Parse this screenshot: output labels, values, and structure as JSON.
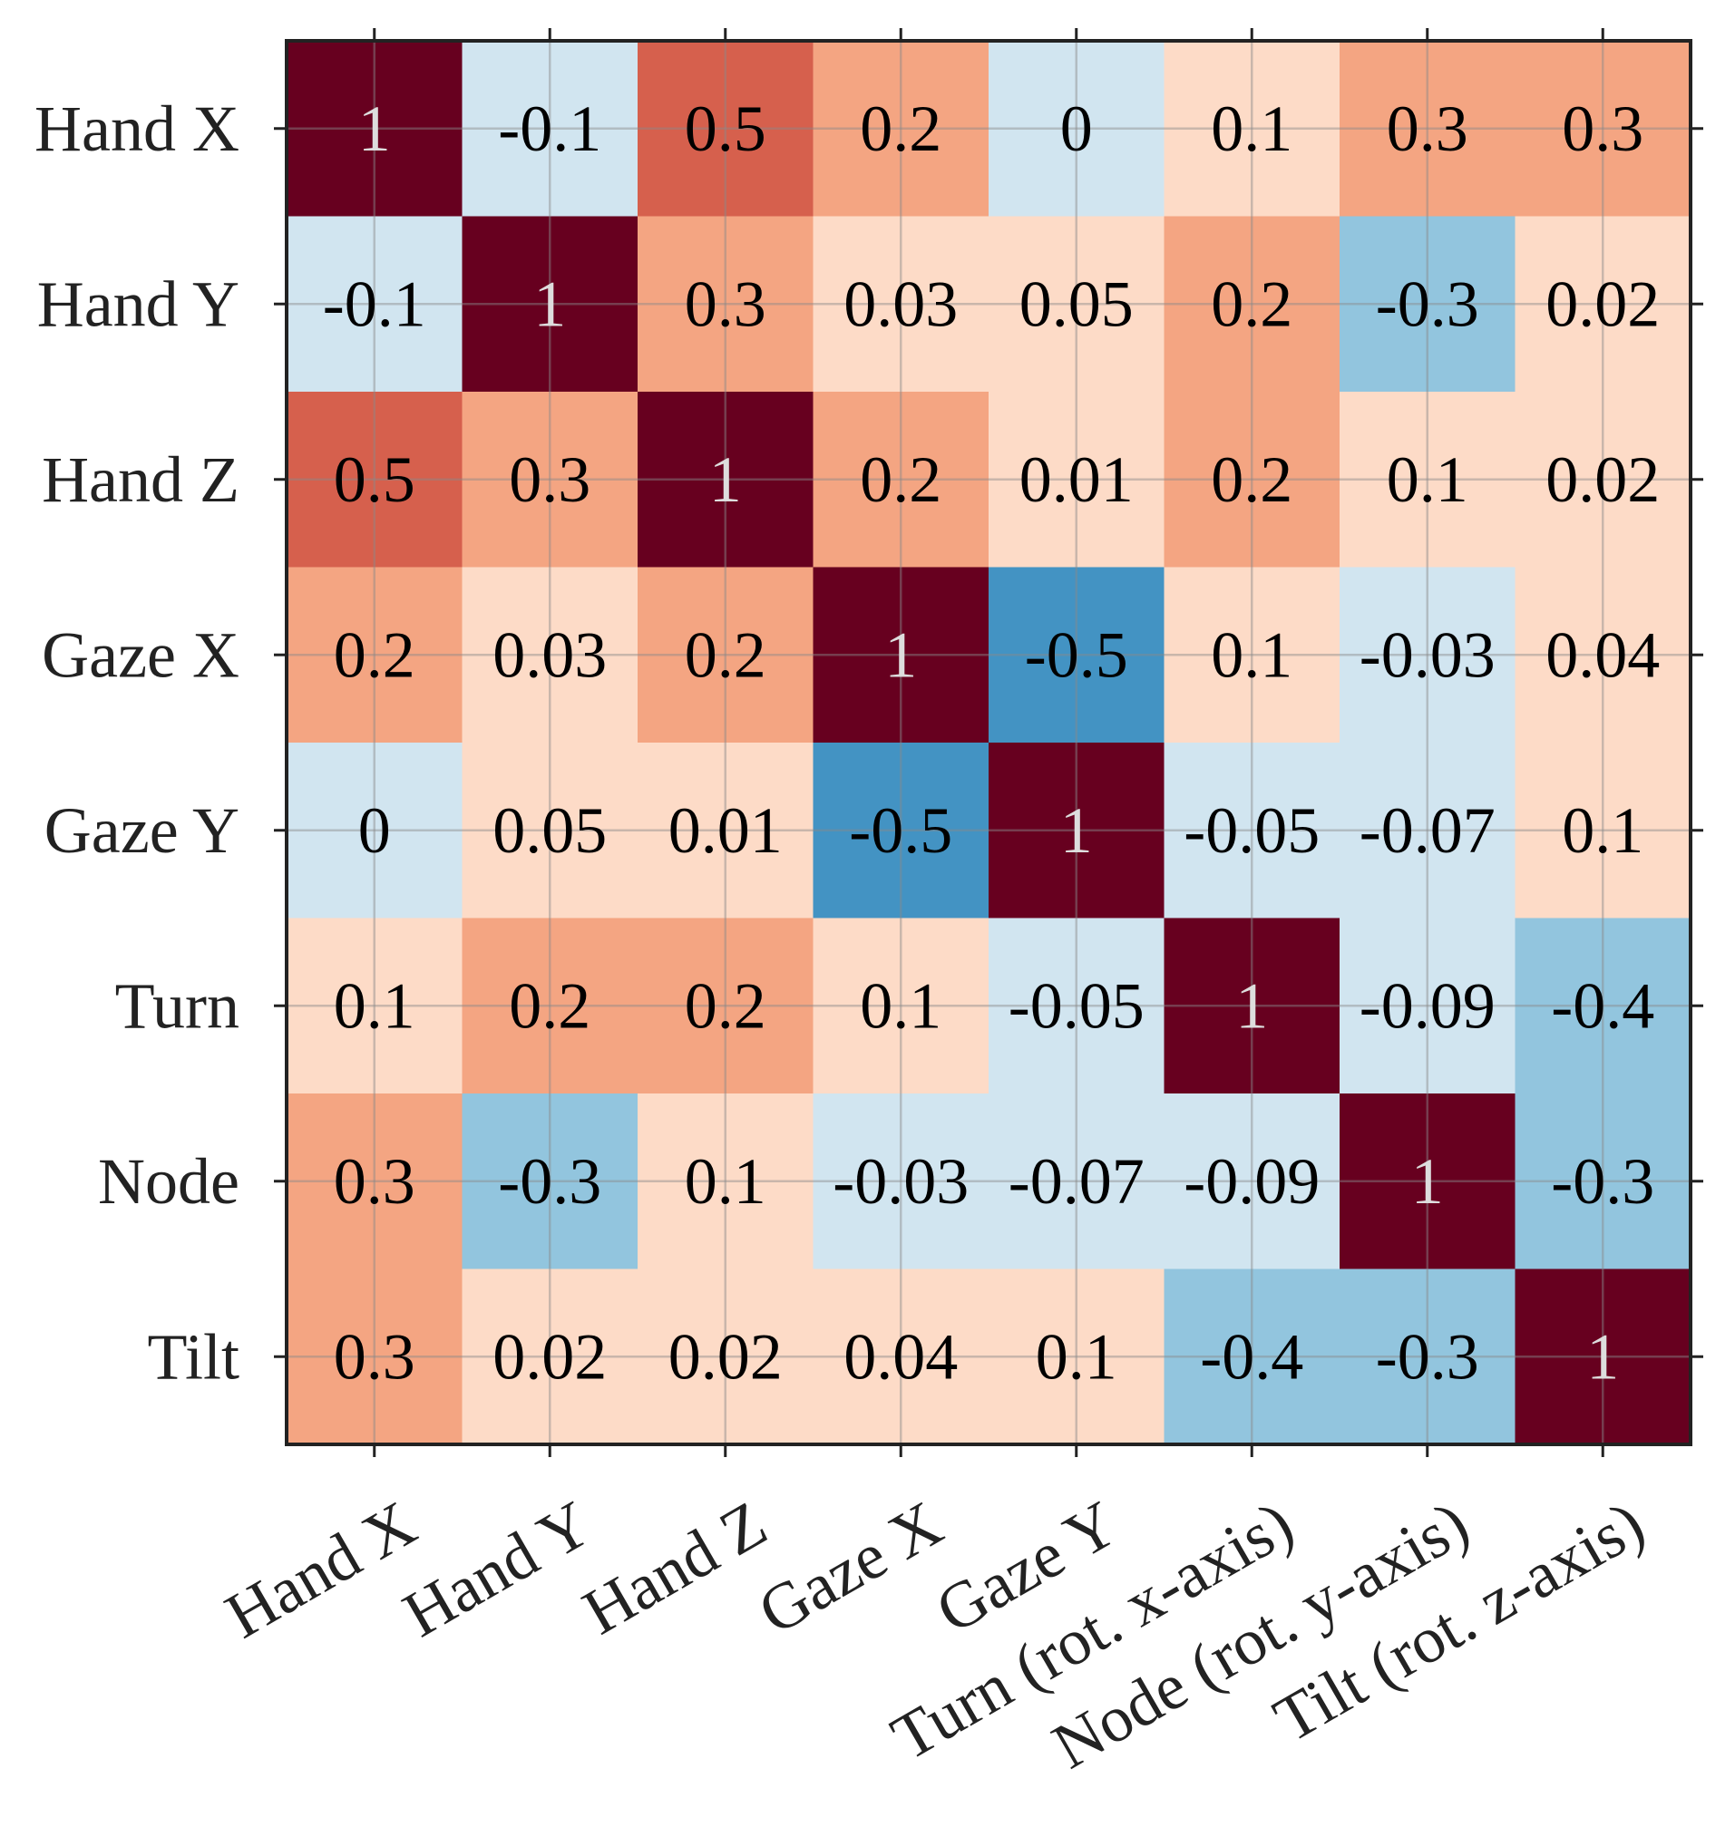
{
  "chart_data": {
    "type": "heatmap",
    "title": "",
    "row_labels": [
      "Hand X",
      "Hand Y",
      "Hand Z",
      "Gaze X",
      "Gaze Y",
      "Turn",
      "Node",
      "Tilt"
    ],
    "column_labels": [
      "Hand X",
      "Hand Y",
      "Hand Z",
      "Gaze X",
      "Gaze Y",
      "Turn (rot. x-axis)",
      "Node (rot. y-axis)",
      "Tilt (rot. z-axis)"
    ],
    "values": [
      [
        1,
        -0.1,
        0.5,
        0.2,
        0,
        0.1,
        0.3,
        0.3
      ],
      [
        -0.1,
        1,
        0.3,
        0.03,
        0.05,
        0.2,
        -0.3,
        0.02
      ],
      [
        0.5,
        0.3,
        1,
        0.2,
        0.01,
        0.2,
        0.1,
        0.02
      ],
      [
        0.2,
        0.03,
        0.2,
        1,
        -0.5,
        0.1,
        -0.03,
        0.04
      ],
      [
        0,
        0.05,
        0.01,
        -0.5,
        1,
        -0.05,
        -0.07,
        0.1
      ],
      [
        0.1,
        0.2,
        0.2,
        0.1,
        -0.05,
        1,
        -0.09,
        -0.4
      ],
      [
        0.3,
        -0.3,
        0.1,
        -0.03,
        -0.07,
        -0.09,
        1,
        -0.3
      ],
      [
        0.3,
        0.02,
        0.02,
        0.04,
        0.1,
        -0.4,
        -0.3,
        1
      ]
    ],
    "cell_labels": [
      [
        "1",
        "-0.1",
        "0.5",
        "0.2",
        "0",
        "0.1",
        "0.3",
        "0.3"
      ],
      [
        "-0.1",
        "1",
        "0.3",
        "0.03",
        "0.05",
        "0.2",
        "-0.3",
        "0.02"
      ],
      [
        "0.5",
        "0.3",
        "1",
        "0.2",
        "0.01",
        "0.2",
        "0.1",
        "0.02"
      ],
      [
        "0.2",
        "0.03",
        "0.2",
        "1",
        "-0.5",
        "0.1",
        "-0.03",
        "0.04"
      ],
      [
        "0",
        "0.05",
        "0.01",
        "-0.5",
        "1",
        "-0.05",
        "-0.07",
        "0.1"
      ],
      [
        "0.1",
        "0.2",
        "0.2",
        "0.1",
        "-0.05",
        "1",
        "-0.09",
        "-0.4"
      ],
      [
        "0.3",
        "-0.3",
        "0.1",
        "-0.03",
        "-0.07",
        "-0.09",
        "1",
        "-0.3"
      ],
      [
        "0.3",
        "0.02",
        "0.02",
        "0.04",
        "0.1",
        "-0.4",
        "-0.3",
        "1"
      ]
    ],
    "value_range": [
      -1,
      1
    ],
    "colormap": "diverging blue-white-red",
    "grid": true,
    "colors": {
      "diagonal": "#67001f",
      "strong_positive": "#d6604d",
      "positive": "#f4a582",
      "weak_positive": "#fddbc7",
      "weak_negative": "#d1e5f0",
      "negative": "#92c5de",
      "strong_negative": "#4393c3",
      "diagonal_text": "#dddddd",
      "text": "#000000",
      "axis": "#222222"
    }
  }
}
